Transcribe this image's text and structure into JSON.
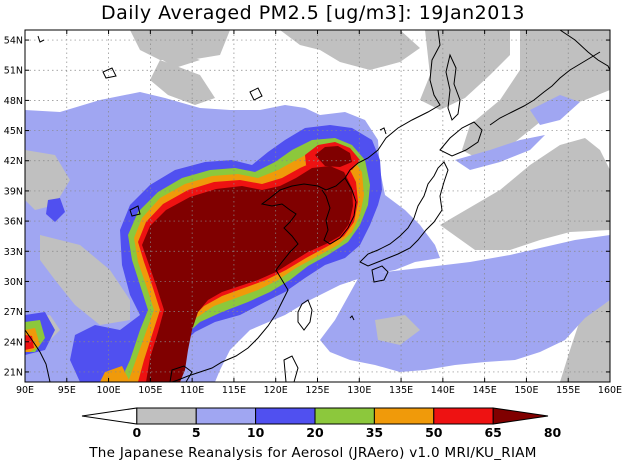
{
  "title": "Daily Averaged PM2.5 [ug/m3]: 19Jan2013",
  "footer": "The Japanese Reanalysis for Aerosol (JRAero) v1.0 MRI/KU_RIAM",
  "map": {
    "lon_range": [
      90,
      160
    ],
    "lat_range": [
      20,
      55
    ],
    "lon_ticks": [
      {
        "value": 90,
        "label": "90E"
      },
      {
        "value": 95,
        "label": "95E"
      },
      {
        "value": 100,
        "label": "100E"
      },
      {
        "value": 105,
        "label": "105E"
      },
      {
        "value": 110,
        "label": "110E"
      },
      {
        "value": 115,
        "label": "115E"
      },
      {
        "value": 120,
        "label": "120E"
      },
      {
        "value": 125,
        "label": "125E"
      },
      {
        "value": 130,
        "label": "130E"
      },
      {
        "value": 135,
        "label": "135E"
      },
      {
        "value": 140,
        "label": "140E"
      },
      {
        "value": 145,
        "label": "145E"
      },
      {
        "value": 150,
        "label": "150E"
      },
      {
        "value": 155,
        "label": "155E"
      },
      {
        "value": 160,
        "label": "160E"
      }
    ],
    "lat_ticks": [
      {
        "value": 21,
        "label": "21N"
      },
      {
        "value": 24,
        "label": "24N"
      },
      {
        "value": 27,
        "label": "27N"
      },
      {
        "value": 30,
        "label": "30N"
      },
      {
        "value": 33,
        "label": "33N"
      },
      {
        "value": 36,
        "label": "36N"
      },
      {
        "value": 39,
        "label": "39N"
      },
      {
        "value": 42,
        "label": "42N"
      },
      {
        "value": 45,
        "label": "45N"
      },
      {
        "value": 48,
        "label": "48N"
      },
      {
        "value": 51,
        "label": "51N"
      },
      {
        "value": 54,
        "label": "54N"
      }
    ]
  },
  "colorbar": {
    "levels": [
      "0",
      "5",
      "10",
      "20",
      "35",
      "50",
      "65",
      "80"
    ],
    "colors": [
      "#ffffff",
      "#c0c0c0",
      "#a0a6f2",
      "#5050f0",
      "#8cc83c",
      "#f09a0a",
      "#ee1212",
      "#800000"
    ]
  }
}
